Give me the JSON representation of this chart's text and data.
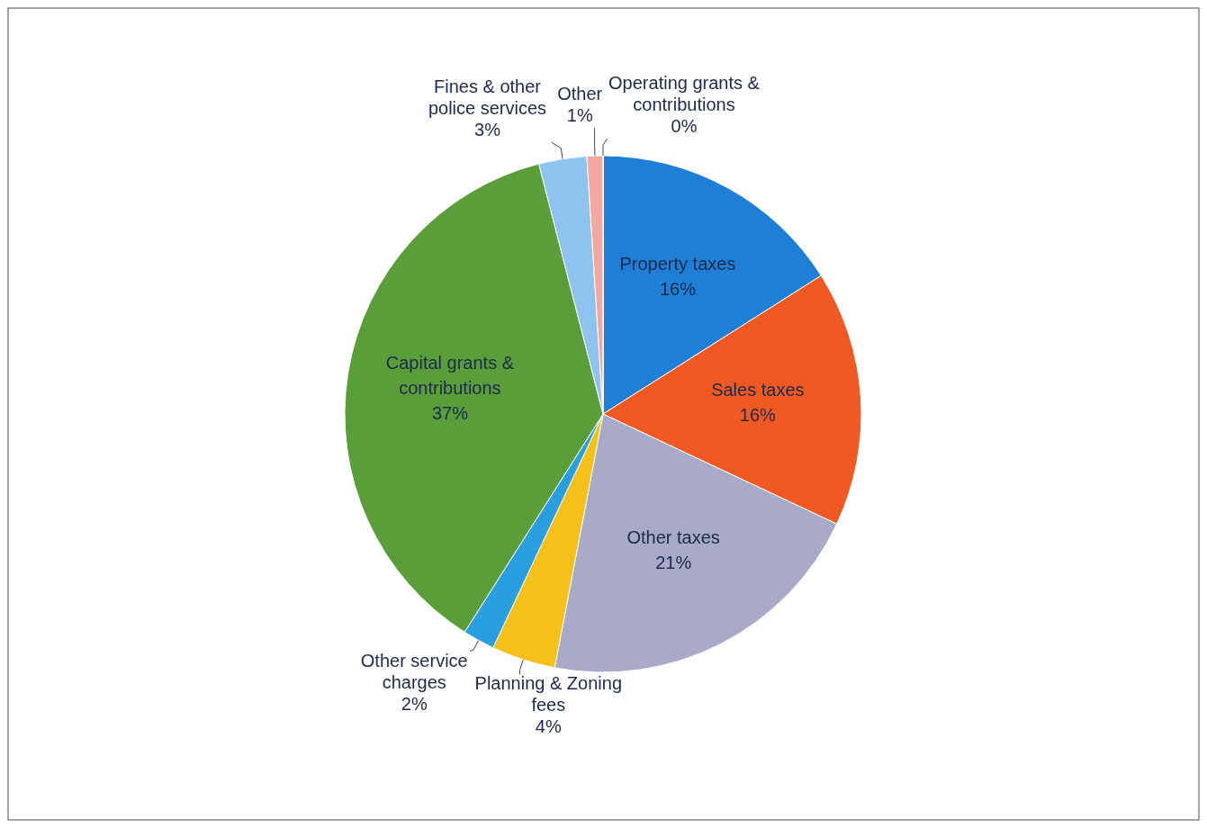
{
  "chart_data": {
    "type": "pie",
    "categories": [
      "Property taxes",
      "Sales taxes",
      "Other taxes",
      "Planning & Zoning fees",
      "Other service charges",
      "Capital grants & contributions",
      "Fines & other police services",
      "Other",
      "Operating grants & contributions"
    ],
    "values": [
      16,
      16,
      21,
      4,
      2,
      37,
      3,
      1,
      0
    ],
    "value_labels": [
      "16%",
      "16%",
      "21%",
      "4%",
      "2%",
      "37%",
      "3%",
      "1%",
      "0%"
    ],
    "colors": [
      "#1f7fd6",
      "#f05a22",
      "#a9a9c8",
      "#f5c01a",
      "#2a9fe0",
      "#5a9e3a",
      "#8fc3ef",
      "#f4a6a0",
      "#f8c8c8"
    ]
  }
}
